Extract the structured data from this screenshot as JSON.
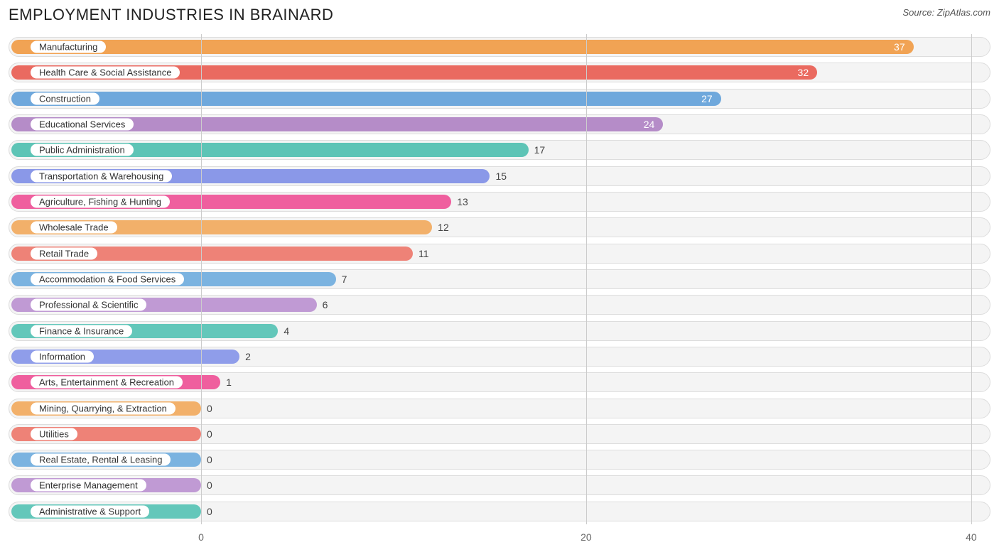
{
  "header": {
    "title": "EMPLOYMENT INDUSTRIES IN BRAINARD",
    "source_prefix": "Source: ",
    "source_name": "ZipAtlas.com"
  },
  "chart": {
    "type": "bar-horizontal",
    "track_bg": "#f4f4f4",
    "track_border": "#dddddd",
    "grid_color": "#cccccc",
    "axis": {
      "min": -10,
      "max": 41,
      "ticks": [
        0,
        20,
        40
      ],
      "label_color": "#666666",
      "label_fontsize": 14
    },
    "bar_min_value": -10,
    "label_fontsize": 13,
    "value_fontsize": 14,
    "rows": [
      {
        "label": "Manufacturing",
        "value": 37,
        "color": "#f1a354",
        "value_inside": true,
        "value_color": "#ffffff"
      },
      {
        "label": "Health Care & Social Assistance",
        "value": 32,
        "color": "#ea6a60",
        "value_inside": true,
        "value_color": "#ffffff"
      },
      {
        "label": "Construction",
        "value": 27,
        "color": "#6fa8dc",
        "value_inside": true,
        "value_color": "#ffffff"
      },
      {
        "label": "Educational Services",
        "value": 24,
        "color": "#b58cc8",
        "value_inside": true,
        "value_color": "#ffffff"
      },
      {
        "label": "Public Administration",
        "value": 17,
        "color": "#5ec4b6",
        "value_inside": false,
        "value_color": "#444444"
      },
      {
        "label": "Transportation & Warehousing",
        "value": 15,
        "color": "#8a98e8",
        "value_inside": false,
        "value_color": "#444444"
      },
      {
        "label": "Agriculture, Fishing & Hunting",
        "value": 13,
        "color": "#ef5f9e",
        "value_inside": false,
        "value_color": "#444444"
      },
      {
        "label": "Wholesale Trade",
        "value": 12,
        "color": "#f2b06a",
        "value_inside": false,
        "value_color": "#444444"
      },
      {
        "label": "Retail Trade",
        "value": 11,
        "color": "#ee8277",
        "value_inside": false,
        "value_color": "#444444"
      },
      {
        "label": "Accommodation & Food Services",
        "value": 7,
        "color": "#7bb3e0",
        "value_inside": false,
        "value_color": "#444444"
      },
      {
        "label": "Professional & Scientific",
        "value": 6,
        "color": "#c09ad4",
        "value_inside": false,
        "value_color": "#444444"
      },
      {
        "label": "Finance & Insurance",
        "value": 4,
        "color": "#63c7ba",
        "value_inside": false,
        "value_color": "#444444"
      },
      {
        "label": "Information",
        "value": 2,
        "color": "#8f9dea",
        "value_inside": false,
        "value_color": "#444444"
      },
      {
        "label": "Arts, Entertainment & Recreation",
        "value": 1,
        "color": "#ef5f9e",
        "value_inside": false,
        "value_color": "#444444"
      },
      {
        "label": "Mining, Quarrying, & Extraction",
        "value": 0,
        "color": "#f2b06a",
        "value_inside": false,
        "value_color": "#444444"
      },
      {
        "label": "Utilities",
        "value": 0,
        "color": "#ee8277",
        "value_inside": false,
        "value_color": "#444444"
      },
      {
        "label": "Real Estate, Rental & Leasing",
        "value": 0,
        "color": "#7bb3e0",
        "value_inside": false,
        "value_color": "#444444"
      },
      {
        "label": "Enterprise Management",
        "value": 0,
        "color": "#c09ad4",
        "value_inside": false,
        "value_color": "#444444"
      },
      {
        "label": "Administrative & Support",
        "value": 0,
        "color": "#63c7ba",
        "value_inside": false,
        "value_color": "#444444"
      }
    ]
  }
}
